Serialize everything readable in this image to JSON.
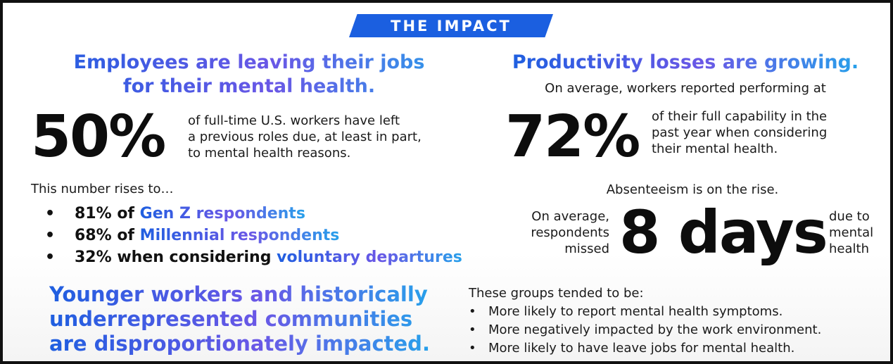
{
  "banner": {
    "title": "THE IMPACT"
  },
  "left": {
    "heading": [
      "Employees are leaving their jobs",
      "for their mental health."
    ],
    "stat": "50%",
    "stat_desc": [
      "of full-time U.S. workers have left",
      "a previous roles due, at least in part,",
      "to mental health reasons."
    ],
    "rises_intro": "This number rises to…",
    "rises": [
      {
        "bullet": "•",
        "prefix": "81% of ",
        "highlight": "Gen Z respondents"
      },
      {
        "bullet": "•",
        "prefix": "68% of ",
        "highlight": "Millennial respondents"
      },
      {
        "bullet": "•",
        "prefix": "32% when considering ",
        "highlight": "voluntary departures"
      }
    ],
    "bottom_heading": [
      "Younger workers and historically",
      "underrepresented communities",
      "are disproportionately impacted."
    ]
  },
  "right": {
    "heading": "Productivity losses are growing.",
    "avg_intro": "On average, workers reported performing at",
    "stat": "72%",
    "stat_desc": [
      "of their full capability in the",
      "past year when considering",
      "their mental health."
    ],
    "absent_heading": "Absenteeism is on the rise.",
    "days_prefix": [
      "On average,",
      "respondents",
      "missed"
    ],
    "days_value": "8",
    "days_unit": "days",
    "days_suffix": [
      "due to",
      "mental",
      "health"
    ],
    "groups_intro": "These groups tended to be:",
    "groups": [
      {
        "bullet": "•",
        "text": "More likely to report mental health symptoms."
      },
      {
        "bullet": "•",
        "text": "More negatively impacted by the work environment."
      },
      {
        "bullet": "•",
        "text": "More likely to have leave jobs for mental health."
      }
    ]
  },
  "colors": {
    "accent_blue": "#1b5fe0",
    "accent_purple": "#6a57e6",
    "accent_cyan": "#27a0ea",
    "text_dark": "#0d0d0d",
    "frame": "#111111"
  }
}
